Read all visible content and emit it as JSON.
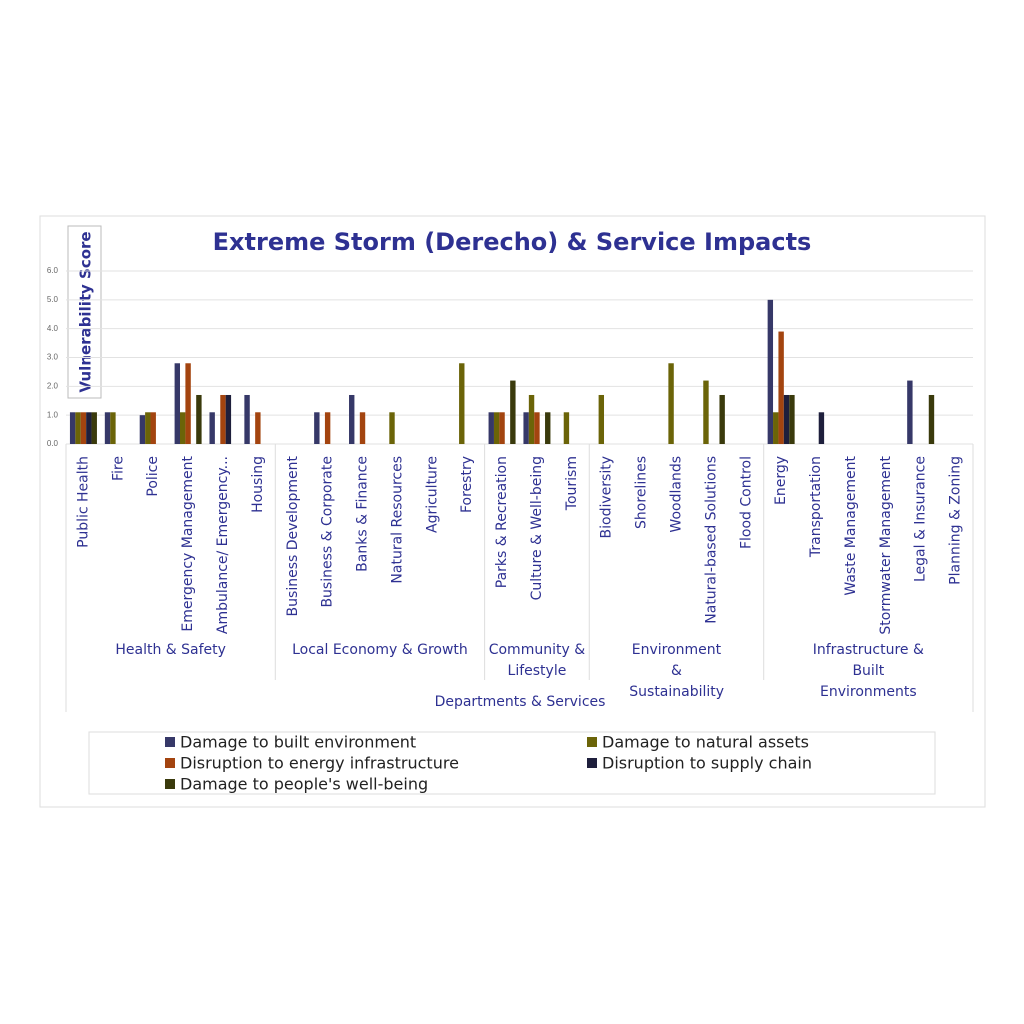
{
  "chart_data": {
    "type": "bar",
    "title": "Extreme Storm (Derecho) & Service Impacts",
    "y_label": "Vulnerability Score",
    "x_label": "Departments & Services",
    "ylim": [
      0,
      6
    ],
    "yticks": [
      {
        "value": 0,
        "label": "0.0"
      },
      {
        "value": 1,
        "label": "1.0"
      },
      {
        "value": 2,
        "label": "2.0"
      },
      {
        "value": 3,
        "label": "3.0"
      },
      {
        "value": 4,
        "label": "4.0"
      },
      {
        "value": 5,
        "label": "5.0"
      },
      {
        "value": 6,
        "label": "6.0"
      }
    ],
    "grid": true,
    "legend": "bottom",
    "groups": [
      {
        "name": "Health & Safety",
        "categories": [
          "Public Health",
          "Fire",
          "Police",
          "Emergency Management",
          "Ambulance/ Emergency...",
          "Housing"
        ]
      },
      {
        "name": "Local Economy & Growth",
        "categories": [
          "Business Development",
          "Business & Corporate",
          "Banks & Finance",
          "Natural Resources",
          "Agriculture",
          "Forestry"
        ]
      },
      {
        "name": "Community & Lifestyle",
        "categories": [
          "Parks & Recreation",
          "Culture & Well-being",
          "Tourism"
        ]
      },
      {
        "name": "Environment & Sustainability",
        "categories": [
          "Biodiversity",
          "Shorelines",
          "Woodlands",
          "Natural-based Solutions",
          "Flood Control"
        ]
      },
      {
        "name": "Infrastructure & Built Environments",
        "categories": [
          "Energy",
          "Transportation",
          "Waste Management",
          "Stormwater Management",
          "Legal & Insurance",
          "Planning & Zoning"
        ]
      }
    ],
    "series": [
      {
        "name": "Damage to built environment",
        "color": "#363868",
        "values": [
          1.1,
          1.1,
          1.0,
          2.8,
          1.1,
          1.7,
          0,
          1.1,
          1.7,
          0,
          0,
          0,
          1.1,
          1.1,
          0,
          0,
          0,
          0,
          0,
          0,
          5.0,
          0,
          0,
          0,
          2.2,
          0
        ]
      },
      {
        "name": "Damage to natural assets",
        "color": "#6b6408",
        "values": [
          1.1,
          1.1,
          1.1,
          1.1,
          0,
          0,
          0,
          0,
          0,
          1.1,
          0,
          2.8,
          1.1,
          1.7,
          1.1,
          1.7,
          0,
          2.8,
          2.2,
          0,
          1.1,
          0,
          0,
          0,
          0,
          0
        ]
      },
      {
        "name": "Disruption to energy infrastructure",
        "color": "#a3440f",
        "values": [
          1.1,
          0,
          1.1,
          2.8,
          1.7,
          1.1,
          0,
          1.1,
          1.1,
          0,
          0,
          0,
          1.1,
          1.1,
          0,
          0,
          0,
          0,
          0,
          0,
          3.9,
          0,
          0,
          0,
          0,
          0
        ]
      },
      {
        "name": "Disruption to supply chain",
        "color": "#1e1f3c",
        "values": [
          1.1,
          0,
          0,
          0,
          1.7,
          0,
          0,
          0,
          0,
          0,
          0,
          0,
          0,
          0,
          0,
          0,
          0,
          0,
          0,
          0,
          1.7,
          1.1,
          0,
          0,
          0,
          0
        ]
      },
      {
        "name": "Damage to people's well-being",
        "color": "#3a3a0c",
        "values": [
          1.1,
          0,
          0,
          1.7,
          0,
          0,
          0,
          0,
          0,
          0,
          0,
          0,
          2.2,
          1.1,
          0,
          0,
          0,
          0,
          1.7,
          0,
          1.7,
          0,
          0,
          0,
          1.7,
          0
        ]
      }
    ]
  }
}
